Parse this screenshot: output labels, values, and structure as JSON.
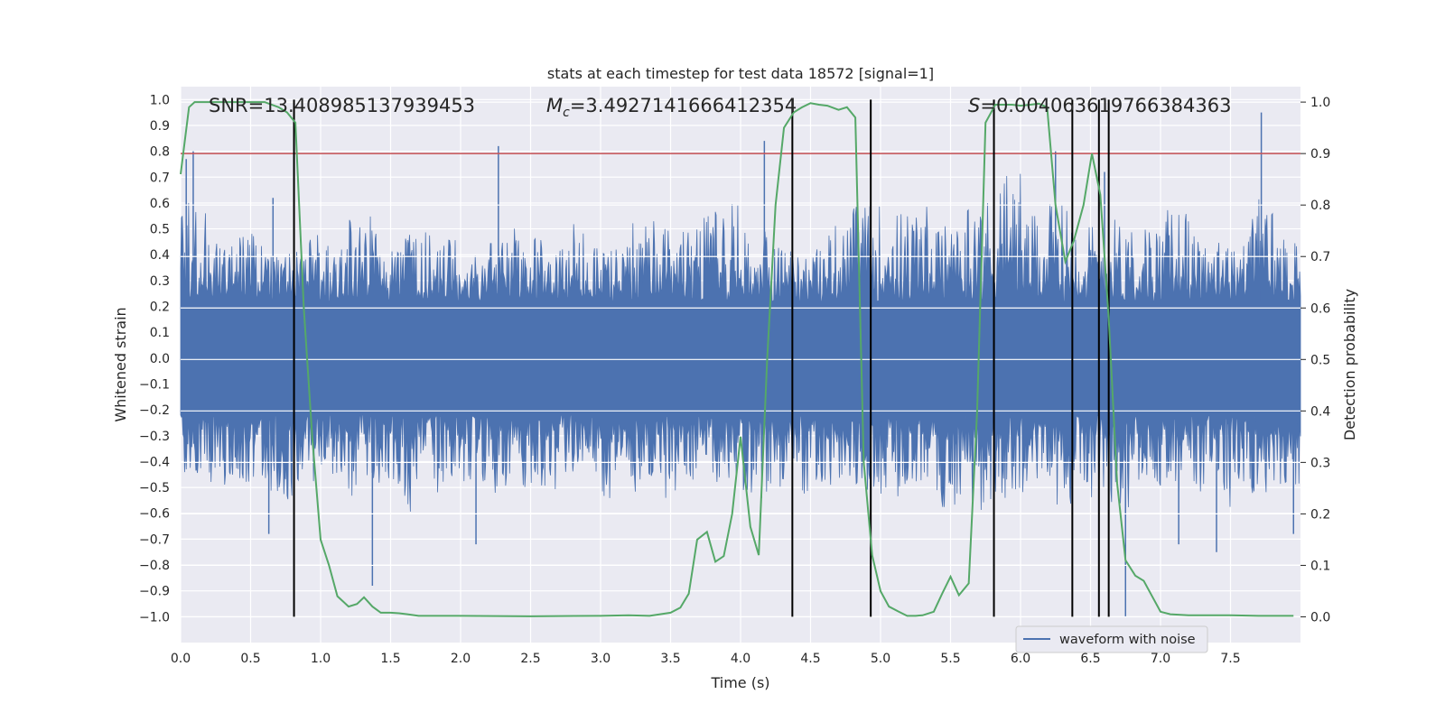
{
  "chart_data": {
    "type": "line",
    "title": "stats at each timestep for test data 18572 [signal=1]",
    "xlabel": "Time (s)",
    "ylabel": "Whitened strain",
    "y2label": "Detection probability",
    "xlim": [
      0,
      8
    ],
    "ylim": [
      -1.1,
      1.05
    ],
    "y2lim": [
      -0.05,
      1.03
    ],
    "x_ticks": [
      0.0,
      0.5,
      1.0,
      1.5,
      2.0,
      2.5,
      3.0,
      3.5,
      4.0,
      4.5,
      5.0,
      5.5,
      6.0,
      6.5,
      7.0,
      7.5
    ],
    "x_tick_labels": [
      "0.0",
      "0.5",
      "1.0",
      "1.5",
      "2.0",
      "2.5",
      "3.0",
      "3.5",
      "4.0",
      "4.5",
      "5.0",
      "5.5",
      "6.0",
      "6.5",
      "7.0",
      "7.5"
    ],
    "y_ticks": [
      1.0,
      0.9,
      0.8,
      0.7,
      0.6,
      0.5,
      0.4,
      0.3,
      0.2,
      0.1,
      0.0,
      -0.1,
      -0.2,
      -0.3,
      -0.4,
      -0.5,
      -0.6,
      -0.7,
      -0.8,
      -0.9,
      -1.0
    ],
    "y_tick_labels": [
      "1.0",
      "0.9",
      "0.8",
      "0.7",
      "0.6",
      "0.5",
      "0.4",
      "0.3",
      "0.2",
      "0.1",
      "0.0",
      "−0.1",
      "−0.2",
      "−0.3",
      "−0.4",
      "−0.5",
      "−0.6",
      "−0.7",
      "−0.8",
      "−0.9",
      "−1.0"
    ],
    "y2_ticks": [
      1.0,
      0.9,
      0.8,
      0.7,
      0.6,
      0.5,
      0.4,
      0.3,
      0.2,
      0.1,
      0.0
    ],
    "y2_tick_labels": [
      "1.0",
      "0.9",
      "0.8",
      "0.7",
      "0.6",
      "0.5",
      "0.4",
      "0.3",
      "0.2",
      "0.1",
      "0.0"
    ],
    "threshold": 0.9,
    "waveform": {
      "name": "waveform with noise",
      "envelope_upper": [
        0.62,
        0.45,
        0.5,
        0.42,
        0.48,
        0.45,
        0.55,
        0.42,
        0.5,
        0.47,
        0.4,
        0.55,
        0.48,
        0.44,
        0.52,
        0.45,
        0.53,
        0.5,
        0.58,
        0.62,
        0.5,
        0.45,
        0.43,
        0.52,
        0.6,
        0.58,
        0.6,
        0.52,
        0.63,
        0.75,
        0.55,
        0.6,
        0.53,
        0.55,
        0.52,
        0.58,
        0.48,
        0.45,
        0.62,
        0.5
      ],
      "envelope_lower": [
        -0.45,
        -0.5,
        -0.48,
        -0.55,
        -0.52,
        -0.45,
        -0.55,
        -0.5,
        -0.6,
        -0.52,
        -0.48,
        -0.55,
        -0.5,
        -0.52,
        -0.45,
        -0.55,
        -0.52,
        -0.55,
        -0.5,
        -0.52,
        -0.55,
        -0.5,
        -0.55,
        -0.5,
        -0.52,
        -0.55,
        -0.5,
        -0.58,
        -0.6,
        -0.55,
        -0.52,
        -0.58,
        -0.55,
        -0.6,
        -0.5,
        -0.55,
        -0.52,
        -0.6,
        -0.55,
        -0.5
      ],
      "spikes": [
        [
          0.04,
          0.77
        ],
        [
          0.09,
          0.8
        ],
        [
          0.66,
          0.62
        ],
        [
          1.37,
          -0.88
        ],
        [
          2.27,
          0.82
        ],
        [
          4.17,
          0.84
        ],
        [
          7.72,
          0.95
        ],
        [
          0.63,
          -0.68
        ],
        [
          2.11,
          -0.72
        ],
        [
          6.75,
          -1.0
        ],
        [
          7.13,
          -0.72
        ],
        [
          7.4,
          -0.75
        ],
        [
          7.95,
          -0.68
        ],
        [
          6.25,
          0.8
        ],
        [
          6.6,
          0.72
        ]
      ]
    },
    "detection_probability": {
      "x": [
        0.0,
        0.06,
        0.1,
        0.2,
        0.3,
        0.4,
        0.5,
        0.6,
        0.7,
        0.76,
        0.82,
        0.88,
        0.94,
        1.0,
        1.06,
        1.12,
        1.2,
        1.26,
        1.31,
        1.37,
        1.43,
        1.5,
        1.56,
        1.62,
        1.7,
        2.0,
        2.5,
        3.0,
        3.2,
        3.35,
        3.5,
        3.57,
        3.63,
        3.69,
        3.76,
        3.82,
        3.88,
        3.94,
        4.0,
        4.07,
        4.13,
        4.19,
        4.25,
        4.31,
        4.38,
        4.44,
        4.5,
        4.56,
        4.62,
        4.7,
        4.76,
        4.82,
        4.88,
        4.94,
        5.0,
        5.06,
        5.13,
        5.19,
        5.25,
        5.3,
        5.38,
        5.44,
        5.5,
        5.56,
        5.63,
        5.69,
        5.75,
        5.82,
        5.88,
        5.94,
        6.0,
        6.07,
        6.13,
        6.19,
        6.25,
        6.32,
        6.38,
        6.45,
        6.51,
        6.57,
        6.63,
        6.69,
        6.75,
        6.82,
        6.88,
        6.94,
        7.0,
        7.07,
        7.2,
        7.5,
        7.7,
        7.8,
        7.95
      ],
      "y": [
        0.86,
        0.99,
        1.0,
        1.0,
        1.0,
        1.0,
        1.0,
        1.0,
        0.99,
        0.98,
        0.96,
        0.6,
        0.35,
        0.15,
        0.1,
        0.04,
        0.02,
        0.025,
        0.038,
        0.02,
        0.008,
        0.008,
        0.007,
        0.005,
        0.002,
        0.002,
        0.001,
        0.002,
        0.003,
        0.002,
        0.008,
        0.018,
        0.045,
        0.15,
        0.165,
        0.107,
        0.118,
        0.2,
        0.35,
        0.175,
        0.12,
        0.5,
        0.8,
        0.95,
        0.98,
        0.99,
        0.998,
        0.995,
        0.993,
        0.985,
        0.99,
        0.97,
        0.3,
        0.12,
        0.05,
        0.02,
        0.01,
        0.002,
        0.002,
        0.003,
        0.01,
        0.045,
        0.078,
        0.042,
        0.065,
        0.4,
        0.96,
        0.995,
        0.995,
        0.995,
        0.993,
        0.995,
        0.997,
        0.99,
        0.8,
        0.69,
        0.73,
        0.8,
        0.9,
        0.82,
        0.58,
        0.26,
        0.11,
        0.08,
        0.07,
        0.04,
        0.01,
        0.005,
        0.003,
        0.003,
        0.002,
        0.002,
        0.002
      ]
    },
    "vertical_lines": [
      0.81,
      4.37,
      4.93,
      5.81,
      6.37,
      6.56,
      6.63
    ],
    "annotations": {
      "snr": "SNR=13.408985137939453",
      "mc_symbol": "M",
      "mc_subscript": "c",
      "mc_value": "=3.4927141666412354",
      "s_symbol": "S",
      "s_value": "=0.004063619766384363"
    },
    "legend": [
      "waveform with noise"
    ],
    "colors": {
      "background": "#eaeaf2",
      "grid": "#ffffff",
      "waveform": "#4c72b0",
      "probability": "#55a868",
      "threshold": "#c44e52",
      "vlines": "#000000"
    }
  }
}
